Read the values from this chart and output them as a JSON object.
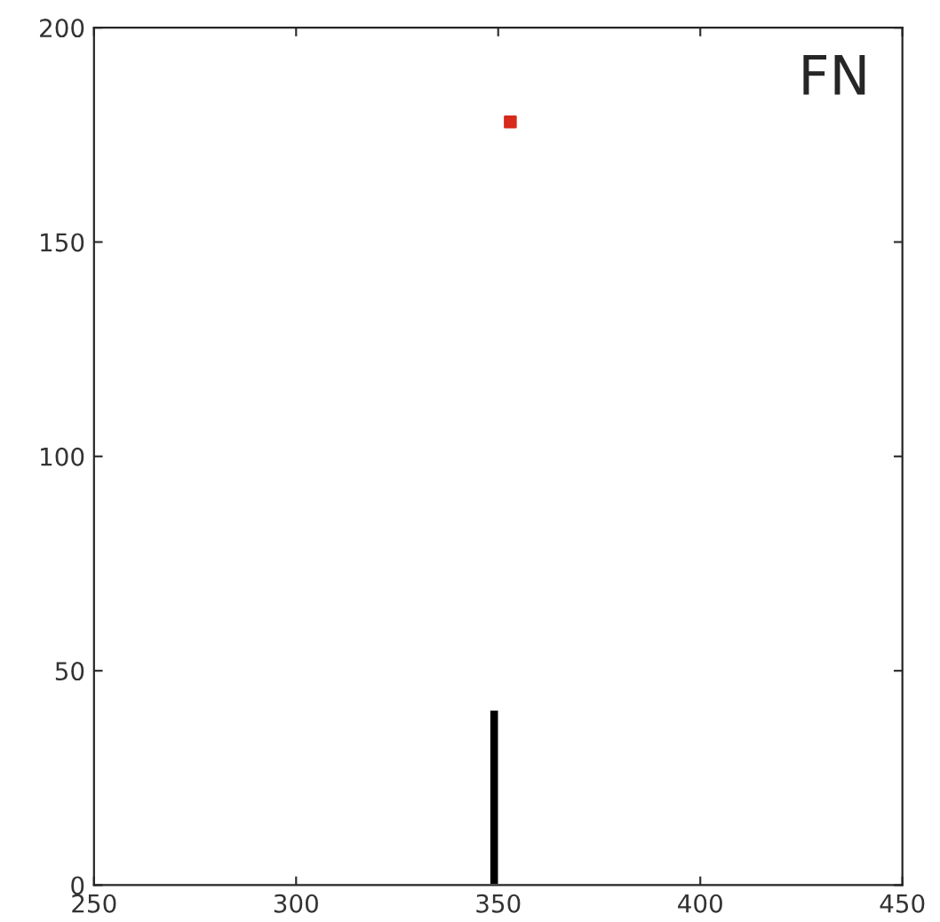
{
  "chart_data": {
    "type": "bar",
    "series": [
      {
        "color": "#000000",
        "x": [
          349
        ],
        "values": [
          41
        ]
      },
      {
        "type": "scatter",
        "color": "#d62a1a",
        "x": [
          353
        ],
        "values": [
          178
        ],
        "marker": "square"
      }
    ],
    "xlim": [
      250,
      450
    ],
    "xticks": [
      250,
      300,
      350,
      400,
      450
    ],
    "ylim": [
      0,
      200
    ],
    "yticks": [
      0,
      50,
      100,
      150,
      200
    ],
    "annotations": [
      "FN"
    ],
    "grid": false,
    "legend": false
  }
}
